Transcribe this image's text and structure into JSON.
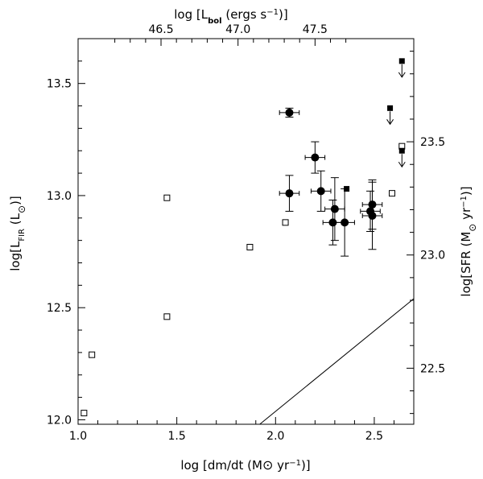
{
  "chart_data": {
    "type": "scatter",
    "x_axis": {
      "quantity": "log [dm/dt (M⊙ yr⁻¹)]",
      "label_prefix": "log [dm/dt (M",
      "label_suffix": " yr",
      "label_exp": "−1",
      "label_end": ")]",
      "range": [
        1.0,
        2.7
      ],
      "ticks": [
        "1.0",
        "1.5",
        "2.0",
        "2.5"
      ]
    },
    "y_axis_left": {
      "quantity": "log[L_FIR (L⊙)]",
      "range": [
        11.98,
        13.7
      ],
      "ticks": [
        "12.0",
        "12.5",
        "13.0",
        "13.5"
      ]
    },
    "x_axis_top": {
      "quantity": "log [L_bol (ergs s⁻¹)]",
      "ticks": [
        "46.5",
        "47.0",
        "47.5"
      ],
      "tick_positions_bottom_units": [
        1.42,
        1.81,
        2.2
      ]
    },
    "y_axis_right": {
      "quantity": "log[SFR (M⊙ yr⁻¹)]",
      "ticks": [
        "22.5",
        "23.0",
        "23.5"
      ],
      "tick_positions_left_units": [
        12.23,
        12.735,
        13.24
      ]
    },
    "series": [
      {
        "marker": "filled-circle",
        "points": [
          {
            "x": 2.07,
            "y": 13.37,
            "xerr": 0.05,
            "yerr": 0.02
          },
          {
            "x": 2.07,
            "y": 13.01,
            "xerr": 0.05,
            "yerr": 0.08
          },
          {
            "x": 2.2,
            "y": 13.17,
            "xerr": 0.05,
            "yerr": 0.07
          },
          {
            "x": 2.23,
            "y": 13.02,
            "xerr": 0.05,
            "yerr": 0.09
          },
          {
            "x": 2.3,
            "y": 12.94,
            "xerr": 0.05,
            "yerr": 0.14
          },
          {
            "x": 2.29,
            "y": 12.88,
            "xerr": 0.05,
            "yerr": 0.1
          },
          {
            "x": 2.35,
            "y": 12.88,
            "xerr": 0.05,
            "yerr": 0.15
          },
          {
            "x": 2.48,
            "y": 12.93,
            "xerr": 0.05,
            "yerr": 0.09
          },
          {
            "x": 2.49,
            "y": 12.96,
            "xerr": 0.05,
            "yerr": 0.11
          },
          {
            "x": 2.49,
            "y": 12.91,
            "xerr": 0.05,
            "yerr": 0.15
          }
        ]
      },
      {
        "marker": "open-square",
        "points": [
          {
            "x": 1.03,
            "y": 12.03
          },
          {
            "x": 1.07,
            "y": 12.29
          },
          {
            "x": 1.45,
            "y": 12.99
          },
          {
            "x": 1.45,
            "y": 12.46
          },
          {
            "x": 1.87,
            "y": 12.77
          },
          {
            "x": 2.05,
            "y": 12.88
          },
          {
            "x": 2.59,
            "y": 13.01
          },
          {
            "x": 2.64,
            "y": 13.22
          }
        ]
      },
      {
        "marker": "filled-square",
        "points": [
          {
            "x": 2.36,
            "y": 13.03
          }
        ]
      },
      {
        "marker": "filled-square-upper-limit",
        "points": [
          {
            "x": 2.64,
            "y": 13.6
          },
          {
            "x": 2.58,
            "y": 13.39
          },
          {
            "x": 2.64,
            "y": 13.2
          }
        ]
      }
    ],
    "line": {
      "x": [
        1.92,
        2.7
      ],
      "y": [
        11.98,
        12.54
      ]
    },
    "grid": false,
    "legend": "none"
  }
}
